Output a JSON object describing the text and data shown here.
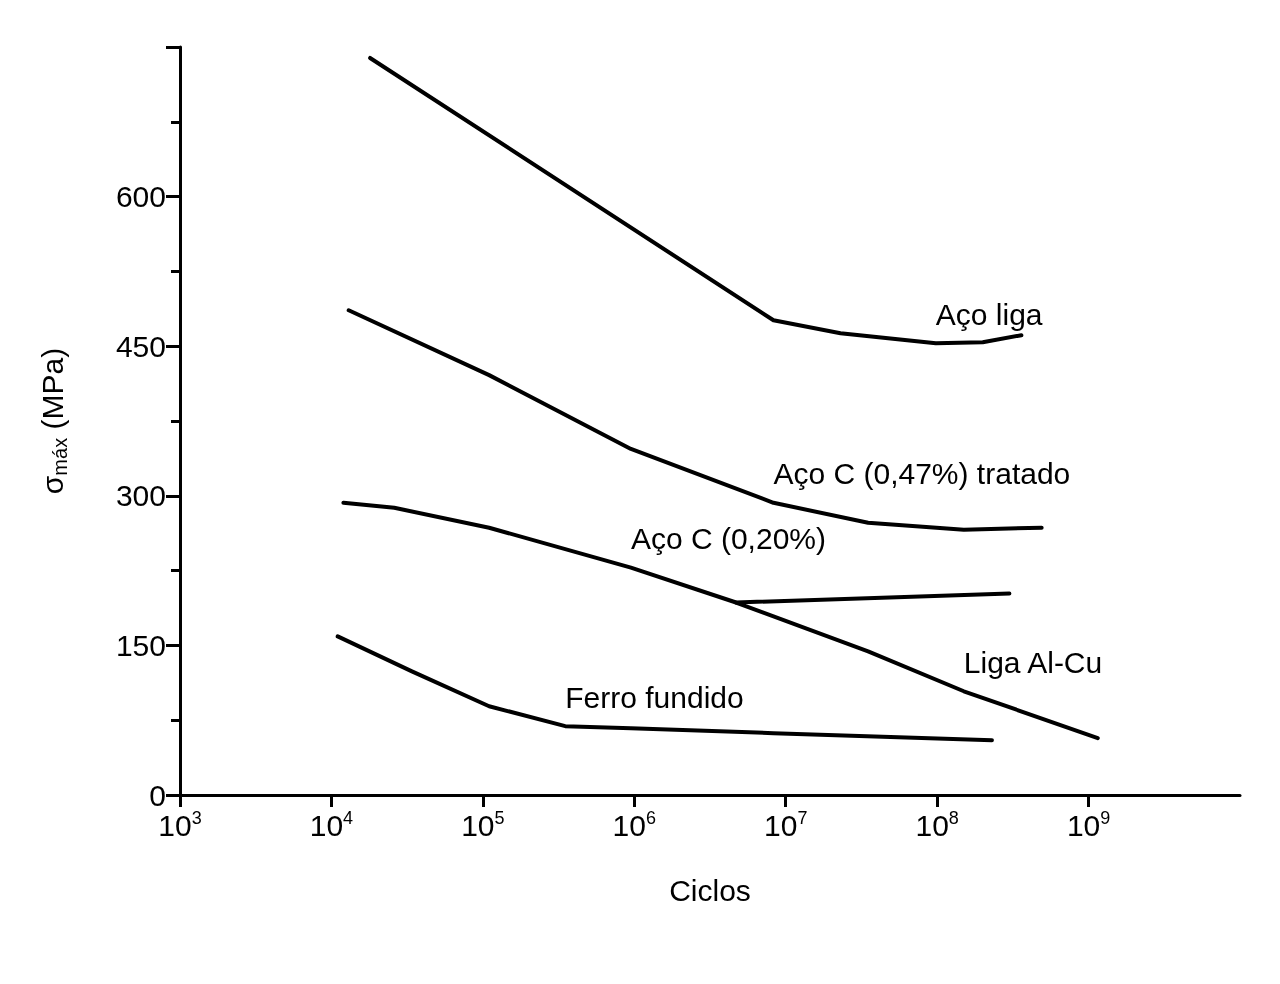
{
  "chart_data": {
    "type": "line",
    "xlabel": "Ciclos",
    "ylabel": "σ$_{máx}$ (MPa)",
    "log": "x",
    "grid": false,
    "legend": false,
    "marker": "none",
    "line_style": "solid",
    "xlim": [
      1000,
      10000000000
    ],
    "xticks": [
      {
        "value": 1000,
        "label": "10$^{3}$"
      },
      {
        "value": 10000,
        "label": "10$^{4}$"
      },
      {
        "value": 100000,
        "label": "10$^{5}$"
      },
      {
        "value": 1000000,
        "label": "10$^{6}$"
      },
      {
        "value": 10000000,
        "label": "10$^{7}$"
      },
      {
        "value": 100000000,
        "label": "10$^{8}$"
      },
      {
        "value": 1000000000,
        "label": "10$^{9}$"
      }
    ],
    "ylim": [
      0,
      750
    ],
    "yticks": [
      0,
      {
        "value": 75,
        "label": null
      },
      150,
      {
        "value": 225,
        "label": null
      },
      300,
      {
        "value": 375,
        "label": null
      },
      450,
      {
        "value": 525,
        "label": null
      },
      600,
      {
        "value": 675,
        "label": null
      },
      {
        "value": 750,
        "label": null
      }
    ],
    "series": [
      {
        "name": "Aço liga",
        "color": "#000000",
        "x": [
          18000,
          8300000,
          23000000,
          98000000,
          200000000,
          360000000
        ],
        "values": [
          739,
          476,
          463,
          453,
          454,
          461
        ]
      },
      {
        "name": "Aço C (0,47%) tratado",
        "color": "#000000",
        "x": [
          13000,
          110000,
          950000,
          8300000,
          35000000,
          150000000,
          490000000
        ],
        "values": [
          486,
          421,
          347,
          293,
          273,
          266,
          268
        ]
      },
      {
        "name": "Aço C (0,20%)",
        "color": "#000000",
        "x": [
          12000,
          26000,
          110000,
          950000,
          4700000,
          300000000
        ],
        "values": [
          293,
          288,
          268,
          228,
          193,
          202
        ]
      },
      {
        "name": "Liga Al-Cu",
        "color": "#000000",
        "x": [
          4700000,
          35000000,
          150000000,
          1150000000
        ],
        "values": [
          193,
          144,
          104,
          57
        ]
      },
      {
        "name": "Ferro fundido",
        "color": "#000000",
        "x": [
          11000,
          34000,
          110000,
          350000,
          950000,
          8300000,
          230000000
        ],
        "values": [
          159,
          124,
          89,
          69,
          67,
          62,
          55
        ]
      }
    ]
  }
}
